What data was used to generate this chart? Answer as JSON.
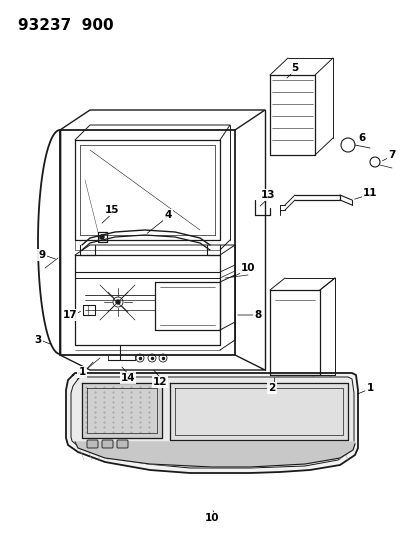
{
  "title": "93237  900",
  "bg": "#ffffff",
  "lc": "#1a1a1a",
  "tc": "#000000",
  "fig_w": 4.14,
  "fig_h": 5.33,
  "dpi": 100
}
